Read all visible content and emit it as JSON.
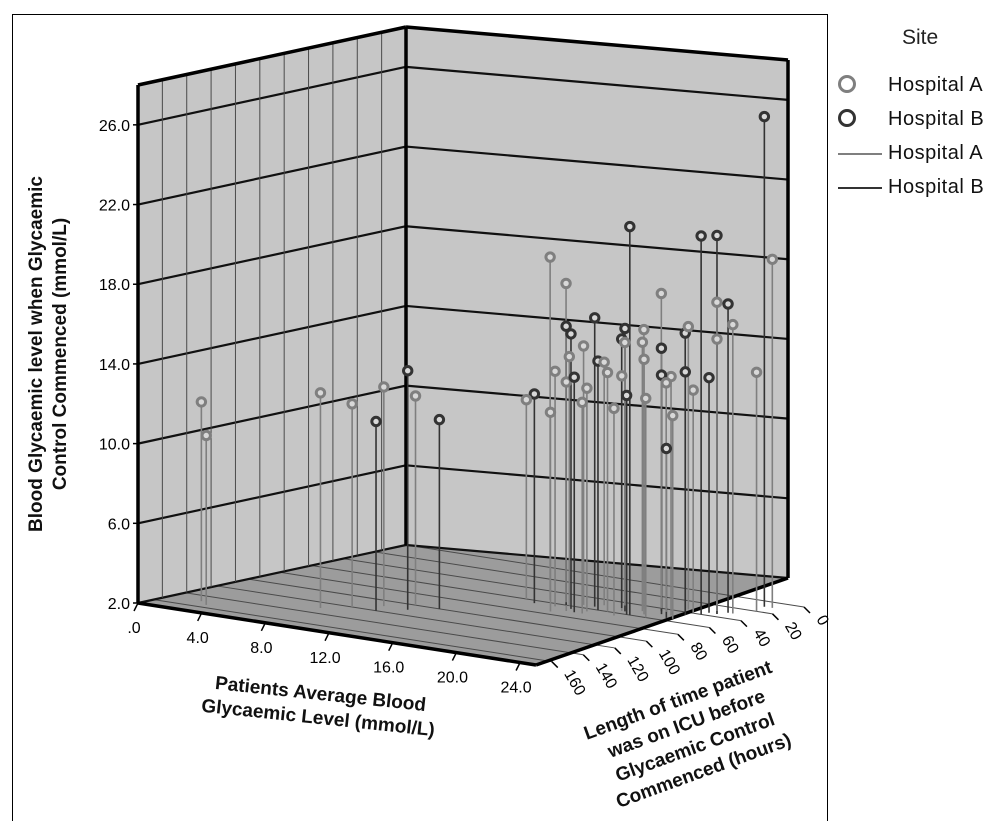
{
  "chart_data": {
    "type": "3d-scatter-drop-lines",
    "y_axis": {
      "label": "Blood Glycaemic level when Glycaemic Control Commenced (mmol/L)",
      "ticks": [
        "2.0",
        "6.0",
        "10.0",
        "14.0",
        "18.0",
        "22.0",
        "26.0"
      ],
      "range": [
        2,
        28
      ]
    },
    "x_axis": {
      "label": "Patients Average Blood Glycaemic Level (mmol/L)",
      "ticks": [
        ".0",
        "4.0",
        "8.0",
        "12.0",
        "16.0",
        "20.0",
        "24.0"
      ],
      "range": [
        0,
        25
      ]
    },
    "z_axis": {
      "label": "Length of time patient was on ICU before Glycaemic Control Commenced (hours)",
      "ticks": [
        "0",
        "20",
        "40",
        "60",
        "80",
        "100",
        "120",
        "140",
        "160"
      ],
      "range": [
        0,
        170
      ]
    },
    "legend": {
      "title": "Site",
      "entries": [
        {
          "label": "Hospital A",
          "kind": "marker",
          "color": "#7f7f7f"
        },
        {
          "label": "Hospital B",
          "kind": "marker",
          "color": "#333333"
        },
        {
          "label": "Hospital A",
          "kind": "line",
          "color": "#7f7f7f"
        },
        {
          "label": "Hospital B",
          "kind": "line",
          "color": "#333333"
        }
      ]
    },
    "series": [
      {
        "name": "Hospital A",
        "color": "#7f7f7f",
        "points": [
          {
            "x": 2.0,
            "z": 150,
            "y": 12.0
          },
          {
            "x": 2.8,
            "z": 155,
            "y": 10.5
          },
          {
            "x": 7.5,
            "z": 130,
            "y": 12.8
          },
          {
            "x": 8.5,
            "z": 120,
            "y": 12.2
          },
          {
            "x": 9.5,
            "z": 110,
            "y": 13.0
          },
          {
            "x": 10.5,
            "z": 100,
            "y": 12.5
          },
          {
            "x": 13.5,
            "z": 60,
            "y": 12.0
          },
          {
            "x": 14.5,
            "z": 55,
            "y": 19.2
          },
          {
            "x": 15.5,
            "z": 55,
            "y": 18.0
          },
          {
            "x": 15.8,
            "z": 65,
            "y": 13.8
          },
          {
            "x": 16.2,
            "z": 60,
            "y": 14.5
          },
          {
            "x": 16.6,
            "z": 55,
            "y": 15.0
          },
          {
            "x": 17.0,
            "z": 70,
            "y": 13.5
          },
          {
            "x": 17.4,
            "z": 50,
            "y": 14.2
          },
          {
            "x": 17.8,
            "z": 65,
            "y": 13.2
          },
          {
            "x": 18.2,
            "z": 45,
            "y": 15.2
          },
          {
            "x": 18.6,
            "z": 60,
            "y": 14.0
          },
          {
            "x": 19.0,
            "z": 55,
            "y": 13.8
          },
          {
            "x": 19.4,
            "z": 45,
            "y": 16.0
          },
          {
            "x": 19.8,
            "z": 50,
            "y": 15.5
          },
          {
            "x": 20.0,
            "z": 40,
            "y": 17.8
          },
          {
            "x": 20.4,
            "z": 55,
            "y": 14.8
          },
          {
            "x": 20.8,
            "z": 45,
            "y": 13.5
          },
          {
            "x": 21.2,
            "z": 35,
            "y": 16.2
          },
          {
            "x": 21.6,
            "z": 50,
            "y": 14.0
          },
          {
            "x": 22.0,
            "z": 40,
            "y": 13.2
          },
          {
            "x": 22.5,
            "z": 30,
            "y": 17.5
          },
          {
            "x": 23.0,
            "z": 35,
            "y": 15.8
          },
          {
            "x": 23.5,
            "z": 30,
            "y": 16.5
          },
          {
            "x": 24.0,
            "z": 20,
            "y": 14.0
          },
          {
            "x": 16.5,
            "z": 75,
            "y": 12.0
          },
          {
            "x": 18.0,
            "z": 70,
            "y": 12.6
          },
          {
            "x": 19.5,
            "z": 65,
            "y": 12.4
          },
          {
            "x": 21.0,
            "z": 60,
            "y": 13.0
          },
          {
            "x": 22.2,
            "z": 55,
            "y": 12.2
          },
          {
            "x": 24.0,
            "z": 10,
            "y": 19.5
          }
        ]
      },
      {
        "name": "Hospital B",
        "color": "#333333",
        "points": [
          {
            "x": 10.0,
            "z": 120,
            "y": 11.5
          },
          {
            "x": 11.0,
            "z": 110,
            "y": 14.0
          },
          {
            "x": 12.0,
            "z": 100,
            "y": 11.5
          },
          {
            "x": 14.5,
            "z": 65,
            "y": 12.5
          },
          {
            "x": 16.0,
            "z": 60,
            "y": 16.0
          },
          {
            "x": 16.8,
            "z": 65,
            "y": 15.8
          },
          {
            "x": 17.3,
            "z": 55,
            "y": 16.5
          },
          {
            "x": 18.0,
            "z": 60,
            "y": 14.5
          },
          {
            "x": 18.5,
            "z": 50,
            "y": 15.5
          },
          {
            "x": 19.2,
            "z": 55,
            "y": 16.2
          },
          {
            "x": 19.8,
            "z": 60,
            "y": 13.0
          },
          {
            "x": 20.5,
            "z": 45,
            "y": 15.2
          },
          {
            "x": 21.0,
            "z": 50,
            "y": 14.0
          },
          {
            "x": 21.5,
            "z": 40,
            "y": 16.0
          },
          {
            "x": 22.0,
            "z": 45,
            "y": 14.2
          },
          {
            "x": 22.5,
            "z": 35,
            "y": 13.8
          },
          {
            "x": 21.8,
            "z": 55,
            "y": 10.5
          },
          {
            "x": 20.0,
            "z": 60,
            "y": 21.5
          },
          {
            "x": 22.5,
            "z": 40,
            "y": 21.0
          },
          {
            "x": 23.0,
            "z": 35,
            "y": 21.0
          },
          {
            "x": 23.5,
            "z": 10,
            "y": 26.6
          },
          {
            "x": 23.2,
            "z": 30,
            "y": 17.5
          },
          {
            "x": 17.5,
            "z": 70,
            "y": 13.8
          }
        ]
      }
    ]
  }
}
